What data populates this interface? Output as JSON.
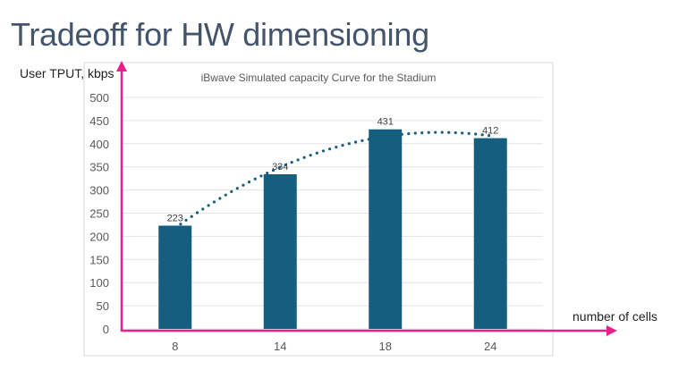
{
  "slide": {
    "title": "Tradeoff for HW dimensioning",
    "y_axis_annotation": "User TPUT, kbps",
    "x_axis_annotation": "number of cells"
  },
  "colors": {
    "bar": "#155e7f",
    "arrows": "#e8208c",
    "title": "#44546a",
    "trendline": "#155e7f"
  },
  "chart_data": {
    "type": "bar",
    "title": "iBwave Simulated capacity Curve for the Stadium",
    "categories": [
      "8",
      "14",
      "18",
      "24"
    ],
    "values": [
      223,
      334,
      431,
      412
    ],
    "data_labels": [
      "223",
      "334",
      "431",
      "412"
    ],
    "ylim": [
      0,
      500
    ],
    "yticks": [
      "0",
      "50",
      "100",
      "150",
      "200",
      "250",
      "300",
      "350",
      "400",
      "450",
      "500"
    ],
    "grid": true,
    "trendline": {
      "type": "polynomial",
      "order": 2,
      "style": "dotted"
    },
    "legend": "none"
  }
}
